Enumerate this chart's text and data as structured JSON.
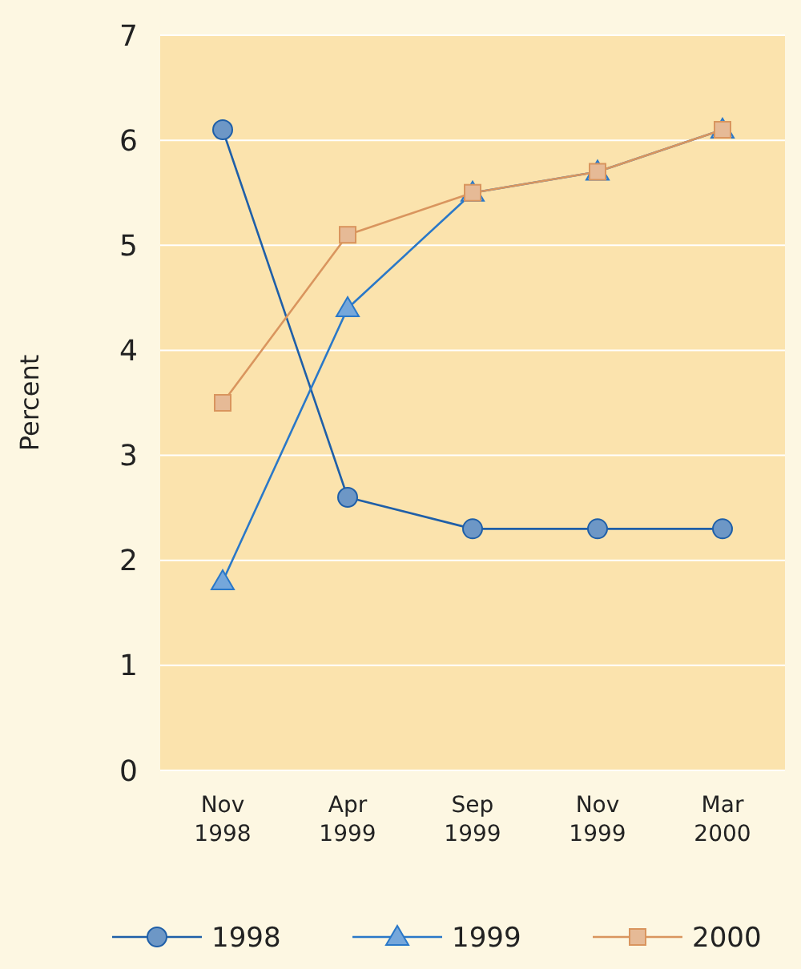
{
  "chart_data": {
    "type": "line",
    "ylabel": "Percent",
    "categories": [
      "Nov 1998",
      "Apr 1999",
      "Sep 1999",
      "Nov 1999",
      "Mar 2000"
    ],
    "series": [
      {
        "name": "1998",
        "color": "#1f5fa8",
        "marker": "circle",
        "values": [
          6.1,
          2.6,
          2.3,
          2.3,
          2.3
        ]
      },
      {
        "name": "1999",
        "color": "#2a78c8",
        "marker": "triangle",
        "values": [
          1.8,
          4.4,
          5.5,
          5.7,
          6.1
        ]
      },
      {
        "name": "2000",
        "color": "#d9955e",
        "marker": "square",
        "values": [
          3.5,
          5.1,
          5.5,
          5.7,
          6.1
        ]
      }
    ],
    "ylim": [
      0,
      7
    ],
    "yticks": [
      0,
      1,
      2,
      3,
      4,
      5,
      6,
      7
    ],
    "grid": "y",
    "legend": "bottom"
  }
}
